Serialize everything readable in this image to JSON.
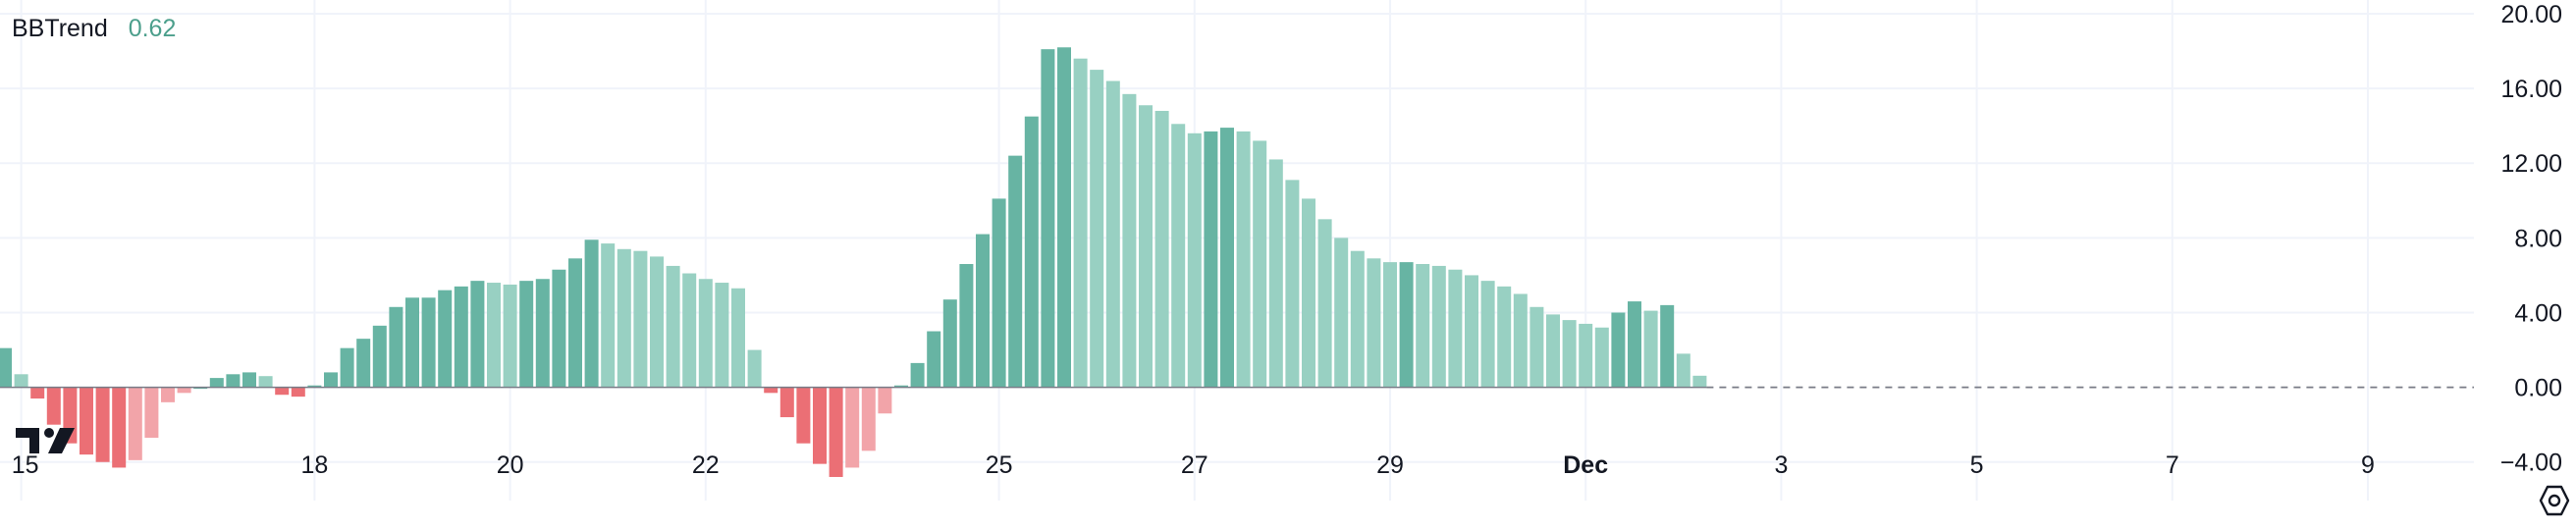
{
  "indicator": {
    "name": "BBTrend",
    "value": "0.62"
  },
  "colors": {
    "pos_strong": "#67b4a3",
    "pos_weak": "#98d0c2",
    "neg_strong": "#eb6f75",
    "neg_weak": "#f2a4a9",
    "legend_value": "#4c9f8c",
    "grid": "#f0f3fa",
    "zero_line": "#787b86",
    "text": "#131722"
  },
  "chart_data": {
    "type": "bar",
    "title": "BBTrend",
    "ylim": [
      -5.8,
      20.0
    ],
    "y_ticks": [
      20,
      16,
      12,
      8,
      4,
      0,
      -4
    ],
    "y_tick_labels": [
      "20.00",
      "16.00",
      "12.00",
      "8.00",
      "4.00",
      "0.00",
      "−4.00"
    ],
    "grid": true,
    "zero_line": "dashed",
    "x_ticks": [
      {
        "label": "15",
        "index": 1,
        "bold": false
      },
      {
        "label": "18",
        "index": 19,
        "bold": false
      },
      {
        "label": "20",
        "index": 31,
        "bold": false
      },
      {
        "label": "22",
        "index": 43,
        "bold": false
      },
      {
        "label": "25",
        "index": 61,
        "bold": false
      },
      {
        "label": "27",
        "index": 73,
        "bold": false
      },
      {
        "label": "29",
        "index": 85,
        "bold": false
      },
      {
        "label": "Dec",
        "index": 97,
        "bold": true
      },
      {
        "label": "3",
        "index": 109,
        "bold": false
      },
      {
        "label": "5",
        "index": 121,
        "bold": false
      },
      {
        "label": "7",
        "index": 133,
        "bold": false
      },
      {
        "label": "9",
        "index": 145,
        "bold": false
      }
    ],
    "total_slots": 152,
    "values": [
      2.1,
      0.7,
      -0.6,
      -2.0,
      -3.0,
      -3.6,
      -4.0,
      -4.3,
      -3.9,
      -2.7,
      -0.8,
      -0.3,
      0.0,
      0.5,
      0.7,
      0.8,
      0.6,
      -0.4,
      -0.5,
      0.1,
      0.8,
      2.1,
      2.6,
      3.3,
      4.3,
      4.8,
      4.8,
      5.2,
      5.4,
      5.7,
      5.6,
      5.5,
      5.7,
      5.8,
      6.3,
      6.9,
      7.9,
      7.7,
      7.4,
      7.3,
      7.0,
      6.5,
      6.1,
      5.8,
      5.6,
      5.3,
      2.0,
      -0.3,
      -1.6,
      -3.0,
      -4.1,
      -4.8,
      -4.3,
      -3.4,
      -1.4,
      0.1,
      1.3,
      3.0,
      4.7,
      6.6,
      8.2,
      10.1,
      12.4,
      14.5,
      18.1,
      18.2,
      17.6,
      17.0,
      16.4,
      15.7,
      15.1,
      14.8,
      14.1,
      13.6,
      13.7,
      13.9,
      13.7,
      13.2,
      12.2,
      11.1,
      10.1,
      9.0,
      8.0,
      7.3,
      6.9,
      6.7,
      6.7,
      6.6,
      6.5,
      6.3,
      6.0,
      5.7,
      5.4,
      5.0,
      4.3,
      3.9,
      3.6,
      3.4,
      3.2,
      4.0,
      4.6,
      4.1,
      4.4,
      1.8,
      0.62
    ]
  }
}
